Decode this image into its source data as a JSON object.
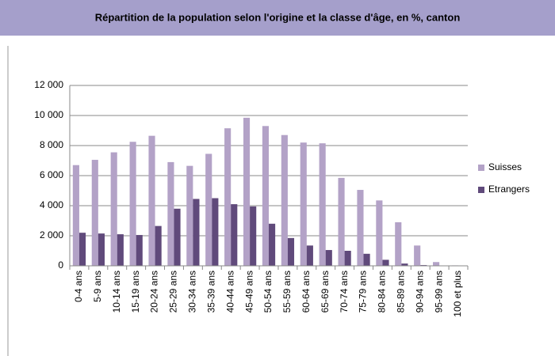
{
  "chart_data": {
    "type": "bar",
    "title": "Répartition de la population selon l'origine et la classe d'âge, en %, canton",
    "categories": [
      "0-4 ans",
      "5-9 ans",
      "10-14 ans",
      "15-19 ans",
      "20-24 ans",
      "25-29 ans",
      "30-34 ans",
      "35-39 ans",
      "40-44 ans",
      "45-49 ans",
      "50-54 ans",
      "55-59 ans",
      "60-64 ans",
      "65-69 ans",
      "70-74 ans",
      "75-79 ans",
      "80-84 ans",
      "85-89 ans",
      "90-94 ans",
      "95-99 ans",
      "100 et plus"
    ],
    "series": [
      {
        "name": "Suisses",
        "color": "#b3a2c7",
        "values": [
          6700,
          7050,
          7550,
          8250,
          8650,
          6900,
          6650,
          7450,
          9150,
          9850,
          9300,
          8700,
          8200,
          8150,
          5850,
          5050,
          4350,
          2900,
          1350,
          250,
          30
        ]
      },
      {
        "name": "Etrangers",
        "color": "#604a7b",
        "values": [
          2200,
          2150,
          2100,
          2050,
          2650,
          3800,
          4450,
          4500,
          4100,
          3950,
          2800,
          1850,
          1350,
          1050,
          1000,
          800,
          400,
          150,
          50,
          10,
          5
        ]
      }
    ],
    "ylim": [
      0,
      12000
    ],
    "yticks": [
      0,
      {
        "value": 2000,
        "label": "2 000"
      },
      {
        "value": 4000,
        "label": "4 000"
      },
      {
        "value": 6000,
        "label": "6 000"
      },
      {
        "value": 8000,
        "label": "8 000"
      },
      {
        "value": 10000,
        "label": "10 000"
      },
      {
        "value": 12000,
        "label": "12 000"
      }
    ],
    "grid": true,
    "legend": "right"
  }
}
